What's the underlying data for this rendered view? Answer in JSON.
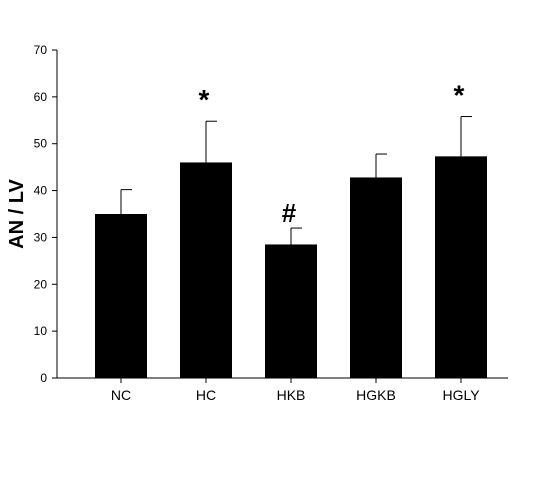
{
  "chart_data": {
    "type": "bar",
    "categories": [
      "NC",
      "HC",
      "HKB",
      "HGKB",
      "HGLY"
    ],
    "values": [
      35,
      46,
      28.5,
      42.8,
      47.3
    ],
    "errors": [
      5.2,
      8.8,
      3.5,
      5.0,
      8.5
    ],
    "annotations": [
      "",
      "*",
      "#",
      "",
      "*"
    ],
    "title": "",
    "xlabel": "",
    "ylabel": "AN / LV",
    "ylim": [
      0,
      70
    ],
    "yticks": [
      0,
      10,
      20,
      30,
      40,
      50,
      60,
      70
    ],
    "grid": false,
    "bar_color": "#000000"
  }
}
